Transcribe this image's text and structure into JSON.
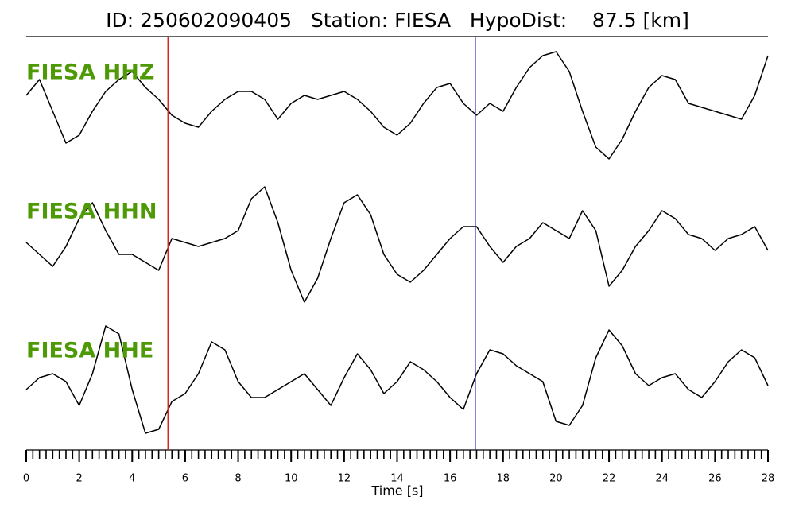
{
  "chart_data": {
    "type": "line",
    "title": "ID: 250602090405   Station: FIESA   HypoDist:    87.5 [km]",
    "xlabel": "Time [s]",
    "xlim": [
      0,
      28
    ],
    "ylim": [
      -80,
      80
    ],
    "xticks": [
      0,
      2,
      4,
      6,
      8,
      10,
      12,
      14,
      16,
      18,
      20,
      22,
      24,
      26,
      28
    ],
    "xticks_minor": [
      0,
      0.25,
      0.5,
      0.75,
      1,
      1.25,
      1.5,
      1.75,
      2,
      2.25,
      2.5,
      2.75,
      3,
      3.25,
      3.5,
      3.75,
      4,
      4.25,
      4.5,
      4.75,
      5,
      5.25,
      5.5,
      5.75,
      6,
      6.25,
      6.5,
      6.75,
      7,
      7.25,
      7.5,
      7.75,
      8,
      8.25,
      8.5,
      8.75,
      9,
      9.25,
      9.5,
      9.75,
      10,
      10.25,
      10.5,
      10.75,
      11,
      11.25,
      11.5,
      11.75,
      12,
      12.25,
      12.5,
      12.75,
      13,
      13.25,
      13.5,
      13.75,
      14,
      14.25,
      14.5,
      14.75,
      15,
      15.25,
      15.5,
      15.75,
      16,
      16.25,
      16.5,
      16.75,
      17,
      17.25,
      17.5,
      17.75,
      18,
      18.25,
      18.5,
      18.75,
      19,
      19.25,
      19.5,
      19.75,
      20,
      20.25,
      20.5,
      20.75,
      21,
      21.25,
      21.5,
      21.75,
      22,
      22.25,
      22.5,
      22.75,
      23,
      23.25,
      23.5,
      23.75,
      24,
      24.25,
      24.5,
      24.75,
      25,
      25.25,
      25.5,
      25.75,
      26,
      26.25,
      26.5,
      26.75,
      27,
      27.25,
      27.5,
      27.75,
      28
    ],
    "label_color": "#4e9a06",
    "x": [
      0,
      0.5,
      1,
      1.5,
      2,
      2.5,
      3,
      3.5,
      4,
      4.5,
      5,
      5.5,
      6,
      6.5,
      7,
      7.5,
      8,
      8.5,
      9,
      9.5,
      10,
      10.5,
      11,
      11.5,
      12,
      12.5,
      13,
      13.5,
      14,
      14.5,
      15,
      15.5,
      16,
      16.5,
      17,
      17.5,
      18,
      18.5,
      19,
      19.5,
      20,
      20.5,
      21,
      21.5,
      22,
      22.5,
      23,
      23.5,
      24,
      24.5,
      25,
      25.5,
      26,
      26.5,
      27,
      27.5,
      28
    ],
    "series": [
      {
        "name": "FIESA HHZ",
        "color": "#000000",
        "values": [
          10,
          30,
          -10,
          -50,
          -40,
          -10,
          15,
          30,
          40,
          20,
          5,
          -15,
          -25,
          -30,
          -10,
          5,
          15,
          15,
          5,
          -20,
          0,
          10,
          5,
          10,
          15,
          5,
          -10,
          -30,
          -40,
          -25,
          0,
          20,
          25,
          0,
          -15,
          0,
          -10,
          20,
          45,
          60,
          65,
          40,
          -10,
          -55,
          -70,
          -45,
          -10,
          20,
          35,
          30,
          0,
          -5,
          -10,
          -15,
          -20,
          10,
          60
        ]
      },
      {
        "name": "FIESA HHN",
        "color": "#000000",
        "values": [
          0,
          -15,
          -30,
          -5,
          30,
          50,
          15,
          -15,
          -15,
          -25,
          -35,
          5,
          0,
          -5,
          0,
          5,
          15,
          55,
          70,
          25,
          -35,
          -75,
          -45,
          5,
          50,
          60,
          35,
          -15,
          -40,
          -50,
          -35,
          -15,
          5,
          20,
          20,
          -5,
          -25,
          -5,
          5,
          25,
          15,
          5,
          40,
          15,
          -55,
          -35,
          -5,
          15,
          40,
          30,
          10,
          5,
          -10,
          5,
          10,
          20,
          -10
        ]
      },
      {
        "name": "FIESA HHE",
        "color": "#000000",
        "values": [
          -10,
          5,
          10,
          0,
          -30,
          10,
          70,
          60,
          -10,
          -65,
          -60,
          -25,
          -15,
          10,
          50,
          40,
          0,
          -20,
          -20,
          -10,
          0,
          10,
          -10,
          -30,
          5,
          35,
          15,
          -15,
          0,
          25,
          15,
          0,
          -20,
          -35,
          10,
          40,
          35,
          20,
          10,
          0,
          -50,
          -55,
          -30,
          30,
          65,
          45,
          10,
          -5,
          5,
          10,
          -10,
          -20,
          0,
          25,
          40,
          30,
          -5
        ]
      }
    ],
    "markers": [
      {
        "x": 5.35,
        "color": "#d62728"
      },
      {
        "x": 16.95,
        "color": "#1f1fa8"
      }
    ]
  }
}
